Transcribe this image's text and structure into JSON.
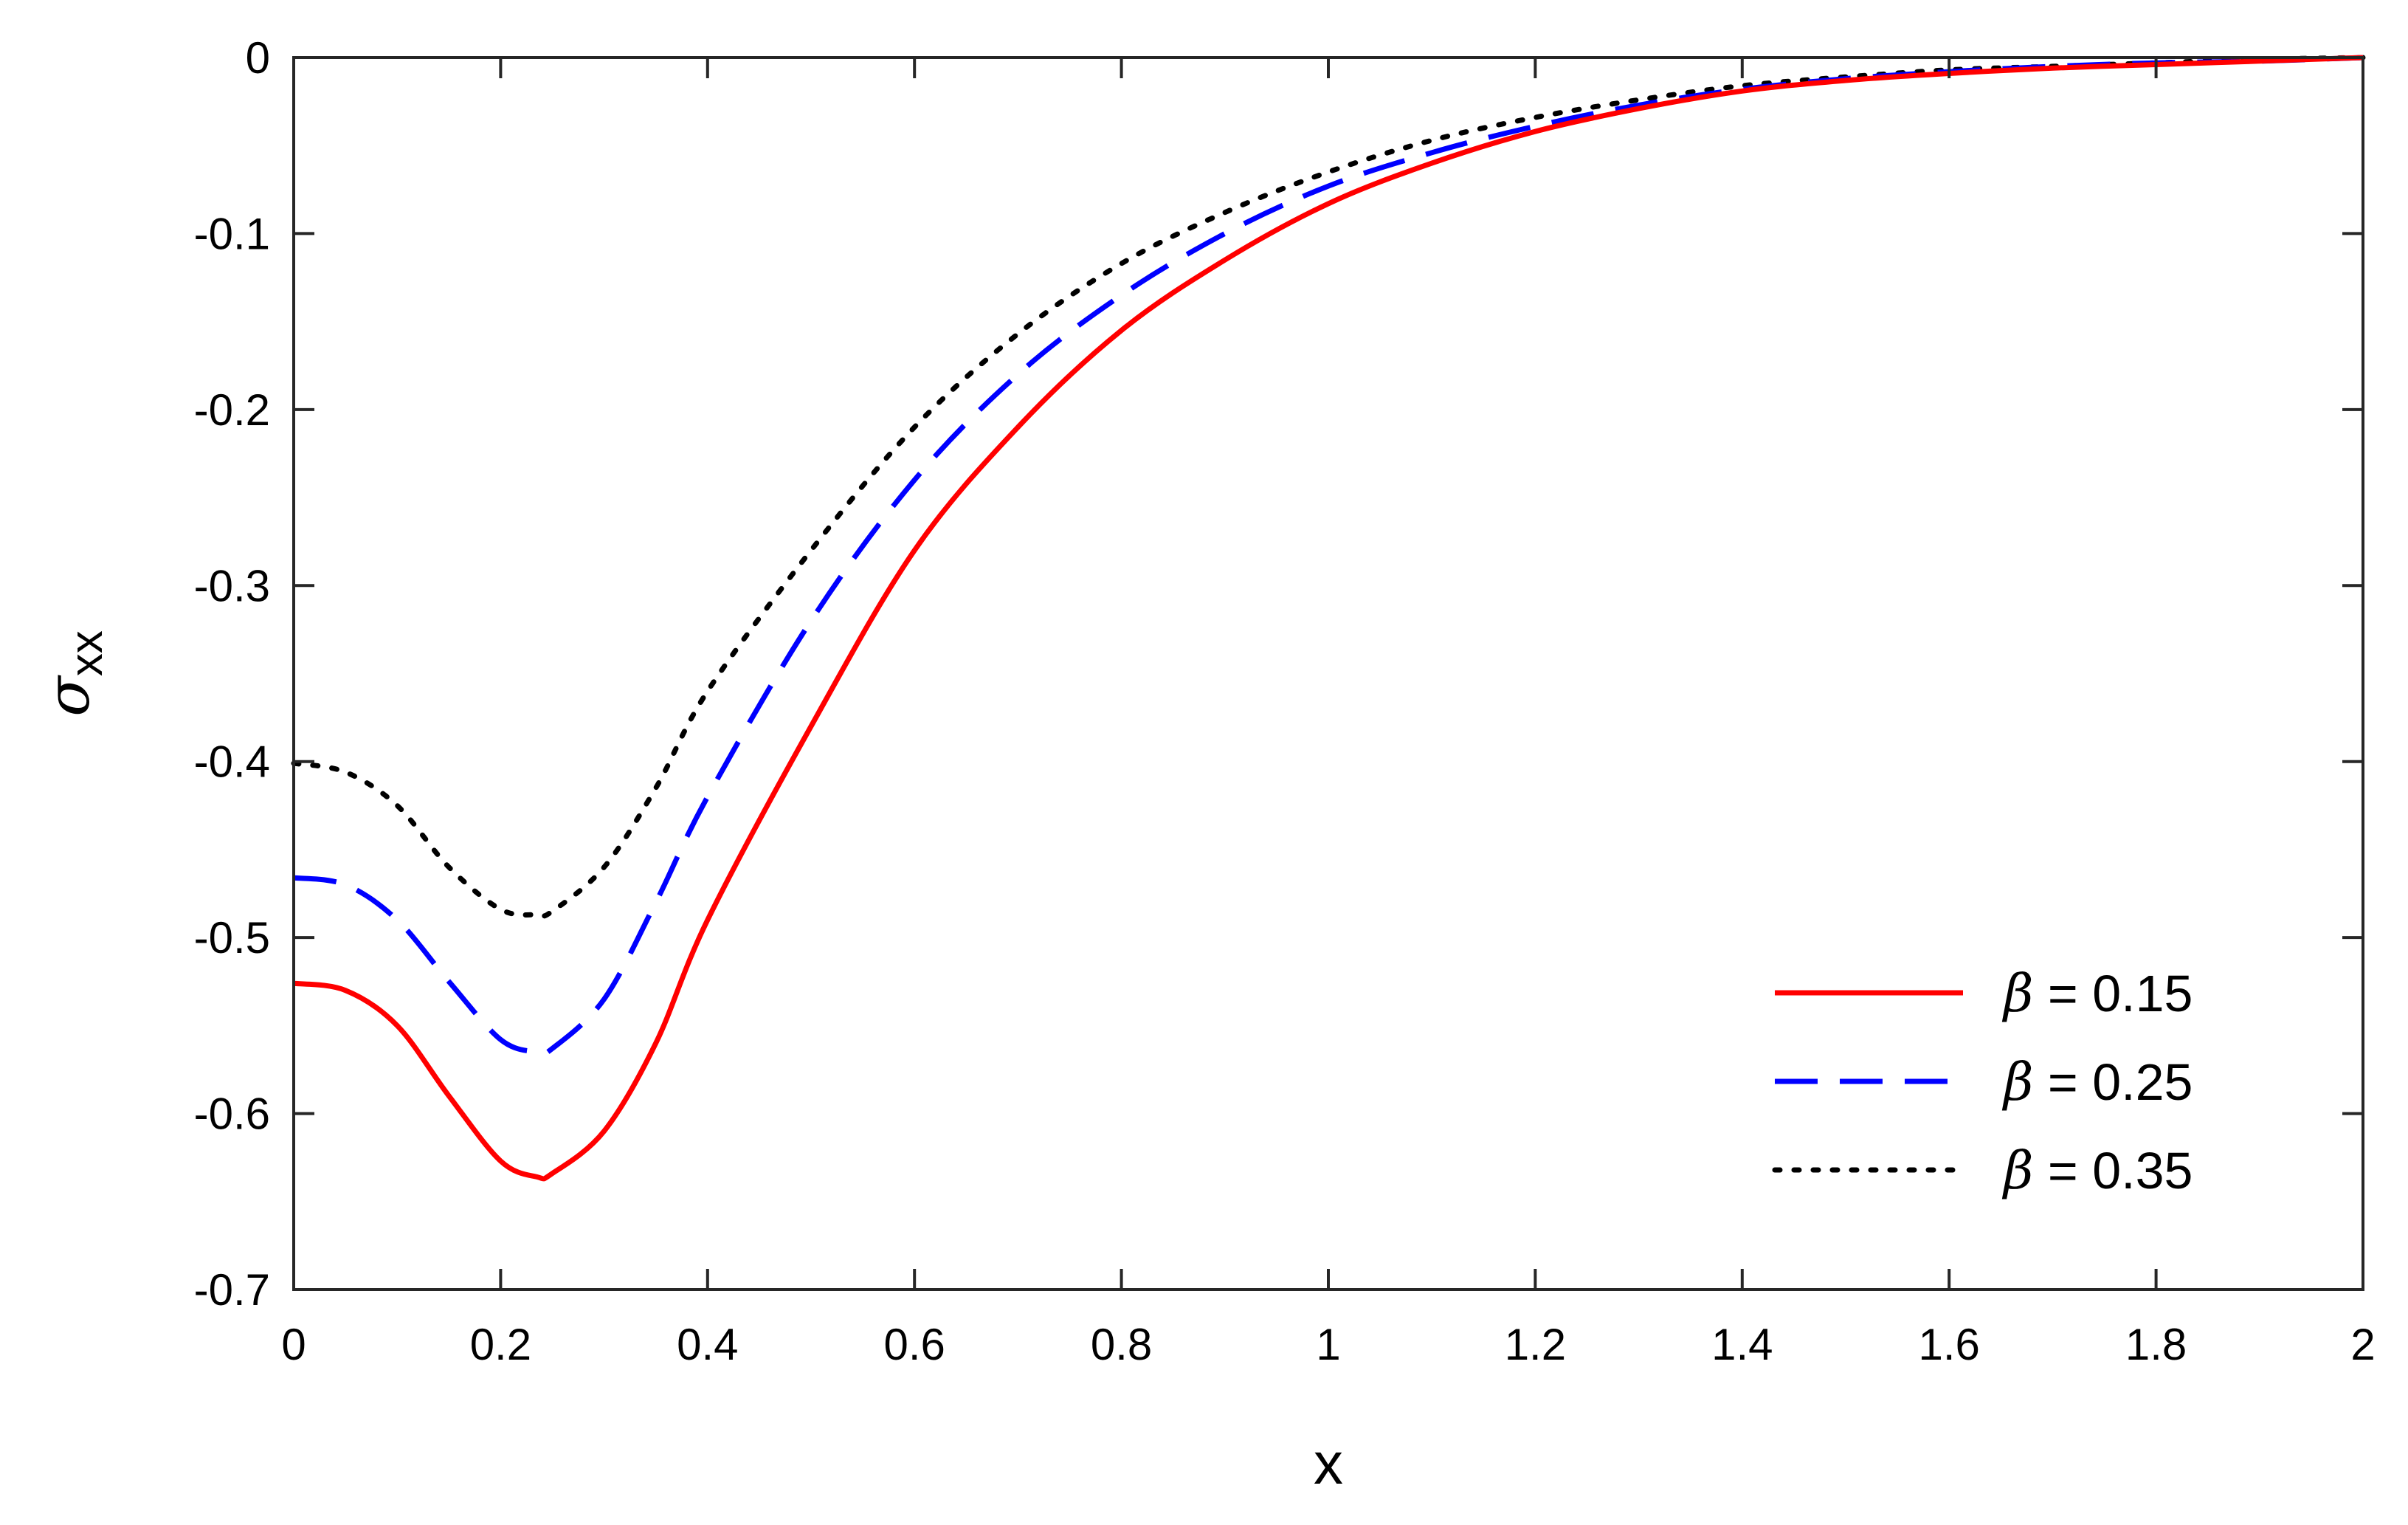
{
  "chart_data": {
    "type": "line",
    "title": "",
    "xlabel": "x",
    "ylabel_symbol": "σ",
    "ylabel_subscript": "xx",
    "xlim": [
      0,
      2
    ],
    "ylim": [
      -0.7,
      0
    ],
    "grid": false,
    "legend_position": "bottom-right",
    "xticks": [
      0,
      0.2,
      0.4,
      0.6,
      0.8,
      1,
      1.2,
      1.4,
      1.6,
      1.8,
      2
    ],
    "xtick_labels": [
      "0",
      "0.2",
      "0.4",
      "0.6",
      "0.8",
      "1",
      "1.2",
      "1.4",
      "1.6",
      "1.8",
      "2"
    ],
    "yticks": [
      0,
      -0.1,
      -0.2,
      -0.3,
      -0.4,
      -0.5,
      -0.6,
      -0.7
    ],
    "ytick_labels": [
      "0",
      "-0.1",
      "-0.2",
      "-0.3",
      "-0.4",
      "-0.5",
      "-0.6",
      "-0.7"
    ],
    "x": [
      0,
      0.05,
      0.1,
      0.15,
      0.2,
      0.235,
      0.25,
      0.3,
      0.35,
      0.4,
      0.5,
      0.6,
      0.7,
      0.8,
      0.9,
      1.0,
      1.1,
      1.2,
      1.3,
      1.4,
      1.5,
      1.6,
      1.7,
      1.8,
      1.9,
      2.0
    ],
    "series": [
      {
        "name": "β = 0.15",
        "greek": "β",
        "label_rest": " = 0.15",
        "color": "#ff0000",
        "style": "solid",
        "values": [
          -0.526,
          -0.53,
          -0.55,
          -0.59,
          -0.627,
          -0.636,
          -0.634,
          -0.61,
          -0.56,
          -0.49,
          -0.38,
          -0.28,
          -0.21,
          -0.155,
          -0.115,
          -0.083,
          -0.06,
          -0.042,
          -0.029,
          -0.019,
          -0.013,
          -0.009,
          -0.006,
          -0.004,
          -0.002,
          0
        ]
      },
      {
        "name": "β = 0.25",
        "greek": "β",
        "label_rest": " = 0.25",
        "color": "#0000ff",
        "style": "dashed",
        "values": [
          -0.466,
          -0.47,
          -0.49,
          -0.525,
          -0.558,
          -0.565,
          -0.563,
          -0.535,
          -0.48,
          -0.42,
          -0.32,
          -0.24,
          -0.18,
          -0.135,
          -0.1,
          -0.073,
          -0.054,
          -0.039,
          -0.027,
          -0.018,
          -0.012,
          -0.008,
          -0.005,
          -0.003,
          -0.002,
          0
        ]
      },
      {
        "name": "β = 0.35",
        "greek": "β",
        "label_rest": " = 0.35",
        "color": "#000000",
        "style": "dotted",
        "values": [
          -0.401,
          -0.406,
          -0.425,
          -0.46,
          -0.484,
          -0.487,
          -0.485,
          -0.46,
          -0.415,
          -0.36,
          -0.28,
          -0.21,
          -0.157,
          -0.117,
          -0.088,
          -0.065,
          -0.047,
          -0.034,
          -0.024,
          -0.016,
          -0.011,
          -0.007,
          -0.005,
          -0.003,
          -0.001,
          0
        ]
      }
    ]
  }
}
